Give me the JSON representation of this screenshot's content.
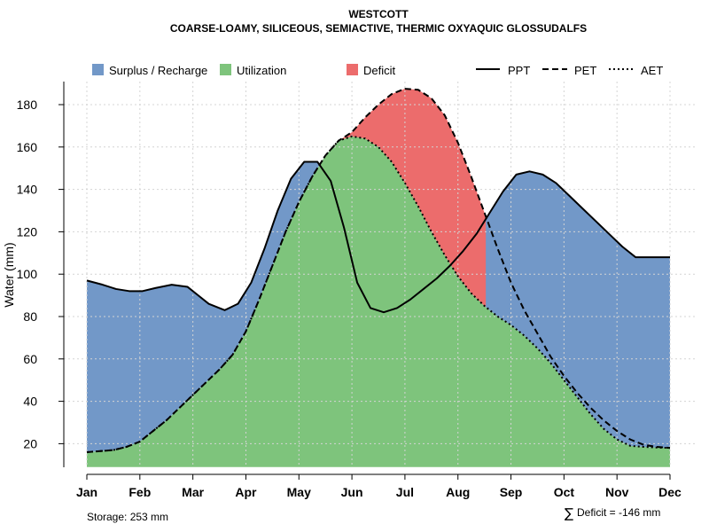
{
  "chart_data": {
    "type": "area",
    "title": "WESTCOTT",
    "subtitle": "COARSE-LOAMY, SILICEOUS, SEMIACTIVE, THERMIC OXYAQUIC GLOSSUDALFS",
    "ylabel": "Water (mm)",
    "xlabel": "",
    "categories": [
      "Jan",
      "Feb",
      "Mar",
      "Apr",
      "May",
      "Jun",
      "Jul",
      "Aug",
      "Sep",
      "Oct",
      "Nov",
      "Dec"
    ],
    "ylim": [
      9,
      192
    ],
    "yticks": [
      20,
      40,
      60,
      80,
      100,
      120,
      140,
      160,
      180
    ],
    "grid": true,
    "series": [
      {
        "name": "PPT",
        "style": "solid",
        "x": [
          1,
          1.3,
          1.55,
          1.8,
          2.05,
          2.3,
          2.6,
          2.9,
          3.1,
          3.3,
          3.6,
          3.85,
          4.1,
          4.35,
          4.6,
          4.85,
          5.1,
          5.35,
          5.6,
          5.85,
          6.1,
          6.35,
          6.6,
          6.85,
          7.1,
          7.35,
          7.6,
          7.85,
          8.1,
          8.35,
          8.6,
          8.85,
          9.1,
          9.35,
          9.6,
          9.85,
          10.1,
          10.35,
          10.6,
          10.85,
          11.1,
          11.35,
          11.6,
          11.85,
          12
        ],
        "y": [
          97,
          95,
          93,
          92,
          92,
          93.5,
          95,
          94,
          90,
          86,
          83,
          86,
          96,
          112,
          130,
          145,
          153,
          153,
          144,
          122,
          96,
          84,
          82,
          84,
          88,
          93,
          98,
          104,
          111,
          119,
          129,
          139,
          147,
          148.5,
          147,
          143,
          137,
          131,
          125,
          119,
          113,
          108,
          108,
          108,
          108
        ]
      },
      {
        "name": "PET",
        "style": "dashed",
        "x": [
          1,
          1.25,
          1.5,
          1.75,
          2,
          2.25,
          2.5,
          2.75,
          3,
          3.25,
          3.5,
          3.75,
          4,
          4.25,
          4.5,
          4.75,
          5,
          5.25,
          5.5,
          5.75,
          6,
          6.25,
          6.5,
          6.75,
          7,
          7.25,
          7.5,
          7.75,
          8,
          8.25,
          8.5,
          8.75,
          9,
          9.25,
          9.5,
          9.75,
          10,
          10.25,
          10.5,
          10.75,
          11,
          11.25,
          11.5,
          11.75,
          12
        ],
        "y": [
          16,
          16.5,
          17,
          18.5,
          21,
          26,
          31,
          37,
          43,
          49,
          55,
          62,
          73,
          88,
          104,
          120,
          134,
          146,
          156,
          163,
          167,
          174,
          180,
          185,
          187.5,
          187,
          183,
          175,
          162,
          146,
          129,
          112,
          96,
          83,
          72,
          61,
          52,
          44,
          37,
          31,
          26,
          22,
          19.5,
          18.5,
          18
        ]
      },
      {
        "name": "AET",
        "style": "dotted",
        "x": [
          1,
          1.25,
          1.5,
          1.75,
          2,
          2.25,
          2.5,
          2.75,
          3,
          3.25,
          3.5,
          3.75,
          4,
          4.25,
          4.5,
          4.75,
          5,
          5.25,
          5.5,
          5.75,
          6,
          6.25,
          6.5,
          6.75,
          7,
          7.25,
          7.5,
          7.75,
          8,
          8.25,
          8.5,
          8.75,
          9,
          9.25,
          9.5,
          9.75,
          10,
          10.25,
          10.5,
          10.75,
          11,
          11.25,
          11.5,
          11.75,
          12
        ],
        "y": [
          16,
          16.5,
          17,
          18.5,
          21,
          26,
          31,
          37,
          43,
          49,
          55,
          62,
          73,
          88,
          104,
          120,
          134,
          146,
          156,
          163,
          165,
          164,
          160,
          153,
          143,
          132,
          120,
          109,
          99,
          91,
          85,
          80,
          76,
          71,
          65,
          58,
          50,
          42,
          34,
          27,
          22,
          19,
          18.5,
          18.2,
          18
        ]
      }
    ],
    "areas": [
      {
        "name": "Surplus / Recharge",
        "color": "#7298c8"
      },
      {
        "name": "Utilization",
        "color": "#7ec47c"
      },
      {
        "name": "Deficit",
        "color": "#ec6c6c"
      }
    ],
    "legend": {
      "position": "top",
      "fills": [
        {
          "label": "Surplus / Recharge",
          "color": "#7298c8"
        },
        {
          "label": "Utilization",
          "color": "#7ec47c"
        },
        {
          "label": "Deficit",
          "color": "#ec6c6c"
        }
      ],
      "lines": [
        {
          "label": "PPT",
          "style": "solid"
        },
        {
          "label": "PET",
          "style": "dashed"
        },
        {
          "label": "AET",
          "style": "dotted"
        }
      ]
    },
    "annotations": {
      "storage": "Storage: 253 mm",
      "deficit": "Deficit = -146 mm",
      "sum_symbol": "∑"
    }
  }
}
